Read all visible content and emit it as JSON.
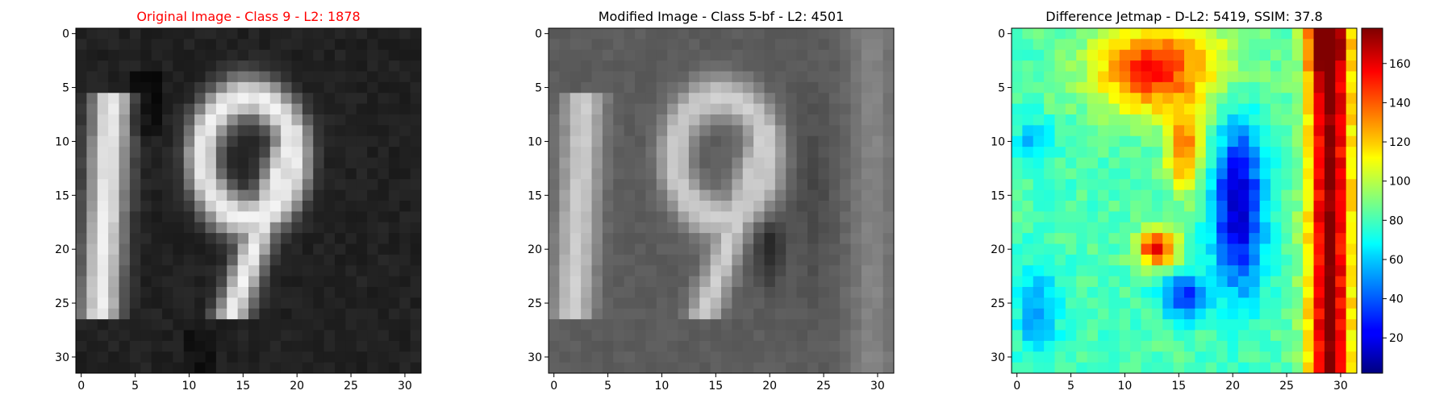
{
  "chart_data": [
    {
      "type": "heatmap",
      "title": "Original Image - Class 9 - L2: 1878",
      "title_color": "#ff0000",
      "colormap": "gray",
      "grid": false,
      "x_ticks": [
        0,
        5,
        10,
        15,
        20,
        25,
        30
      ],
      "y_ticks": [
        0,
        5,
        10,
        15,
        20,
        25,
        30
      ],
      "xlim": [
        -0.5,
        31.5
      ],
      "ylim": [
        31.5,
        -0.5
      ]
    },
    {
      "type": "heatmap",
      "title": "Modified Image - Class 5-bf - L2: 4501",
      "title_color": "#000000",
      "colormap": "gray",
      "grid": false,
      "x_ticks": [
        0,
        5,
        10,
        15,
        20,
        25,
        30
      ],
      "y_ticks": [
        0,
        5,
        10,
        15,
        20,
        25,
        30
      ],
      "xlim": [
        -0.5,
        31.5
      ],
      "ylim": [
        31.5,
        -0.5
      ]
    },
    {
      "type": "heatmap",
      "title": "Difference Jetmap - D-L2: 5419, SSIM: 37.8",
      "title_color": "#000000",
      "colormap": "jet",
      "grid": false,
      "x_ticks": [
        0,
        5,
        10,
        15,
        20,
        25,
        30
      ],
      "y_ticks": [
        0,
        5,
        10,
        15,
        20,
        25,
        30
      ],
      "xlim": [
        -0.5,
        31.5
      ],
      "ylim": [
        31.5,
        -0.5
      ],
      "colorbar": {
        "range": [
          2,
          178
        ],
        "ticks": [
          20,
          40,
          60,
          80,
          100,
          120,
          140,
          160
        ],
        "placement": "right"
      }
    }
  ]
}
